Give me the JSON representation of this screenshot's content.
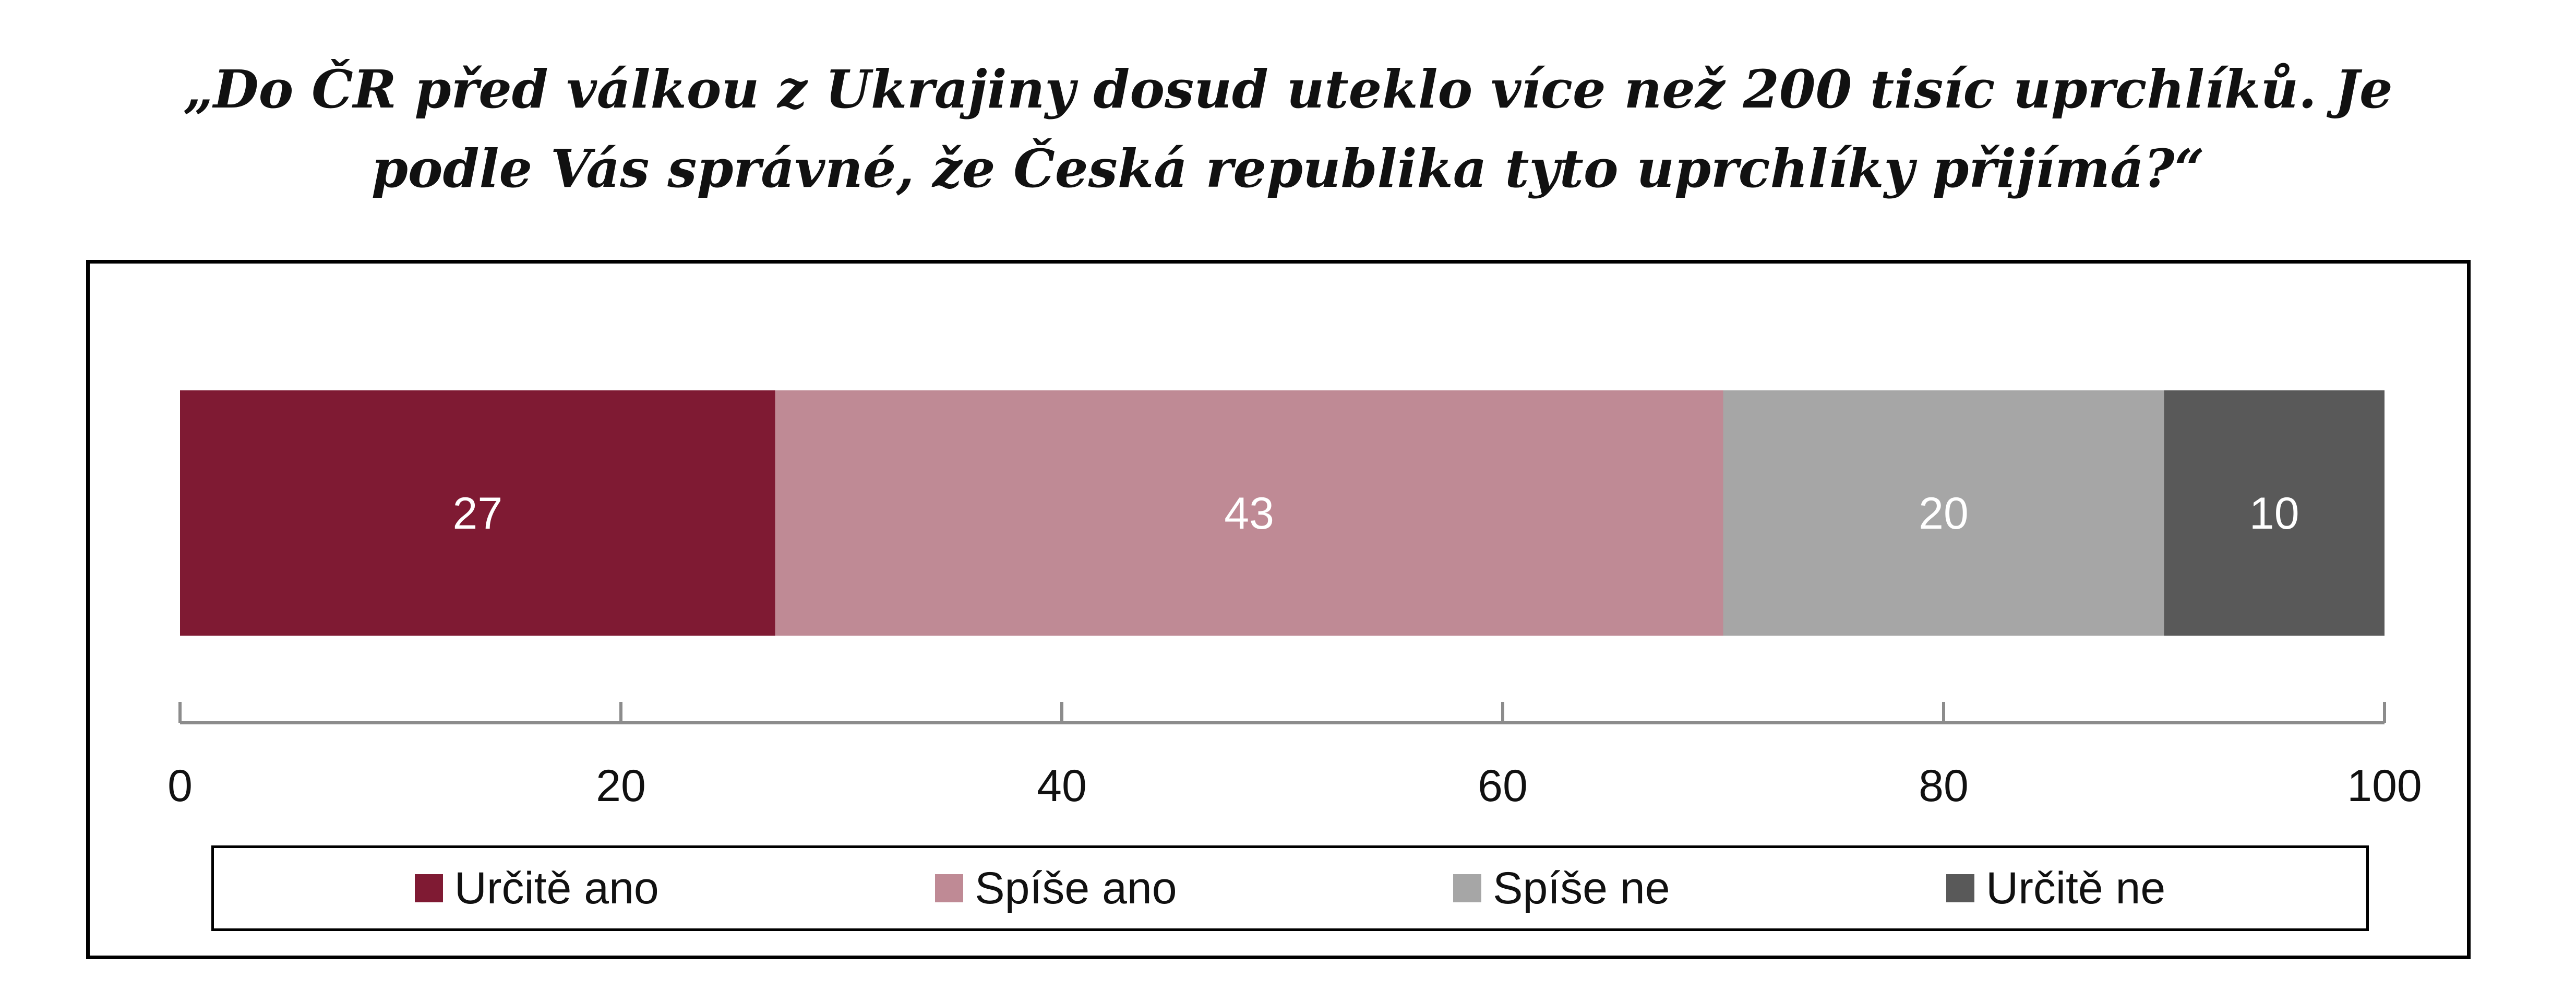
{
  "title_lines": [
    "„Do ČR před válkou z Ukrajiny dosud uteklo více než 200 tisíc uprchlíků. Je",
    "podle Vás správné, že Česká republika tyto uprchlíky přijímá?“"
  ],
  "chart_data": {
    "type": "bar",
    "orientation": "horizontal",
    "stacked": true,
    "categories": [
      ""
    ],
    "series": [
      {
        "name": "Určitě ano",
        "values": [
          27
        ],
        "color": "#7f1a33"
      },
      {
        "name": "Spíše ano",
        "values": [
          43
        ],
        "color": "#bf8a95"
      },
      {
        "name": "Spíše ne",
        "values": [
          20
        ],
        "color": "#a6a6a6"
      },
      {
        "name": "Určitě ne",
        "values": [
          10
        ],
        "color": "#595959"
      }
    ],
    "xlim": [
      0,
      100
    ],
    "xticks": [
      "0",
      "20",
      "40",
      "60",
      "80",
      "100"
    ],
    "xlabel": "",
    "ylabel": "",
    "grid": false,
    "legend_position": "bottom"
  }
}
